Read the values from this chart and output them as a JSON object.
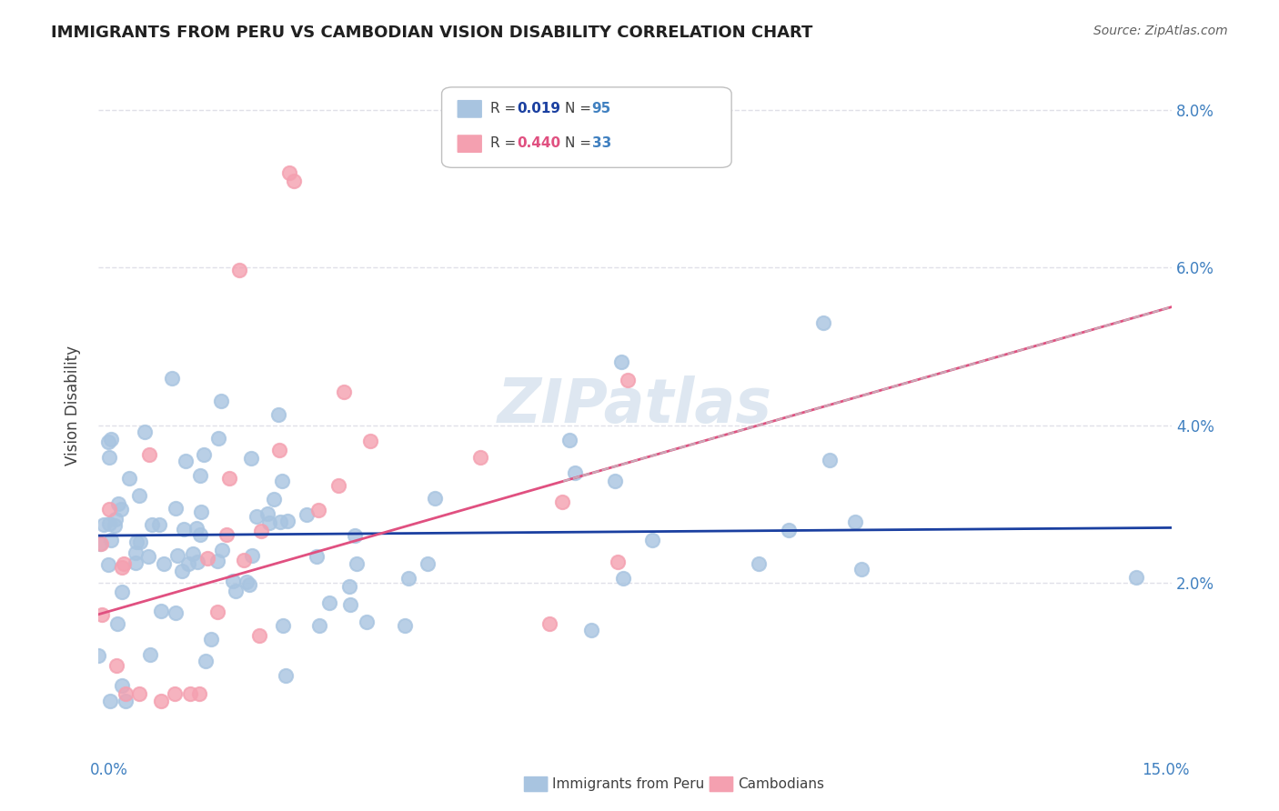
{
  "title": "IMMIGRANTS FROM PERU VS CAMBODIAN VISION DISABILITY CORRELATION CHART",
  "source": "Source: ZipAtlas.com",
  "ylabel": "Vision Disability",
  "xmin": 0.0,
  "xmax": 0.15,
  "ymin": 0.0,
  "ymax": 0.085,
  "legend_peru": "Immigrants from Peru",
  "legend_cambodians": "Cambodians",
  "R_peru": "0.019",
  "N_peru": "95",
  "R_cambodian": "0.440",
  "N_cambodian": "33",
  "color_peru": "#a8c4e0",
  "color_cambodian": "#f4a0b0",
  "trendline_peru_color": "#1a3fa0",
  "trendline_cambodian_color": "#e05080",
  "trendline_cambodian_dashed_color": "#c8aab8",
  "watermark_color": "#c8d8e8",
  "title_color": "#202020",
  "axis_color": "#4080c0",
  "grid_color": "#e0e0e8"
}
